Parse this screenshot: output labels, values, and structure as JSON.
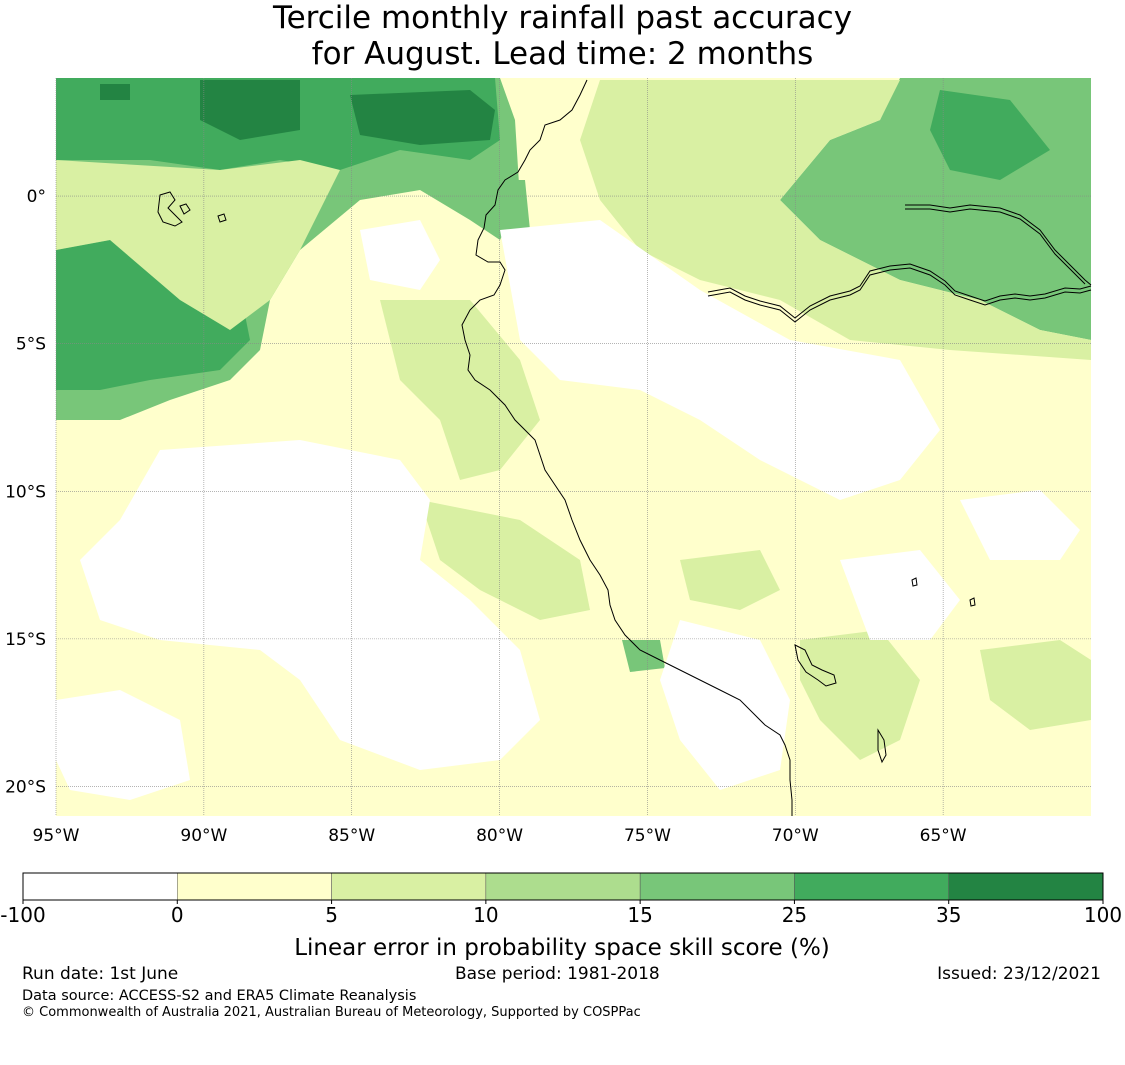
{
  "title": {
    "line1": "Tercile monthly rainfall past accuracy",
    "line2": "for August. Lead time: 2 months"
  },
  "map": {
    "lat_labels": [
      "0°",
      "5°S",
      "10°S",
      "15°S",
      "20°S"
    ],
    "lat_values": [
      0,
      -5,
      -10,
      -15,
      -20
    ],
    "lon_labels": [
      "95°W",
      "90°W",
      "85°W",
      "80°W",
      "75°W",
      "70°W",
      "65°W"
    ],
    "lon_values": [
      -95,
      -90,
      -85,
      -80,
      -75,
      -70,
      -65
    ]
  },
  "colorbar": {
    "tick_labels": [
      "-100",
      "0",
      "5",
      "10",
      "15",
      "25",
      "35",
      "100"
    ],
    "colors": [
      "#ffffff",
      "#ffffcc",
      "#d9f0a3",
      "#addd8e",
      "#78c679",
      "#41ab5d",
      "#238443"
    ],
    "label": "Linear error in probability space skill score (%)"
  },
  "footer": {
    "run_date": "Run date: 1st June",
    "base_period": "Base period: 1981-2018",
    "issued": "Issued: 23/12/2021",
    "data_source": "Data source: ACCESS-S2 and ERA5 Climate Reanalysis",
    "copyright": "© Commonwealth of Australia 2021, Australian Bureau of Meteorology, Supported by COSPPac"
  }
}
